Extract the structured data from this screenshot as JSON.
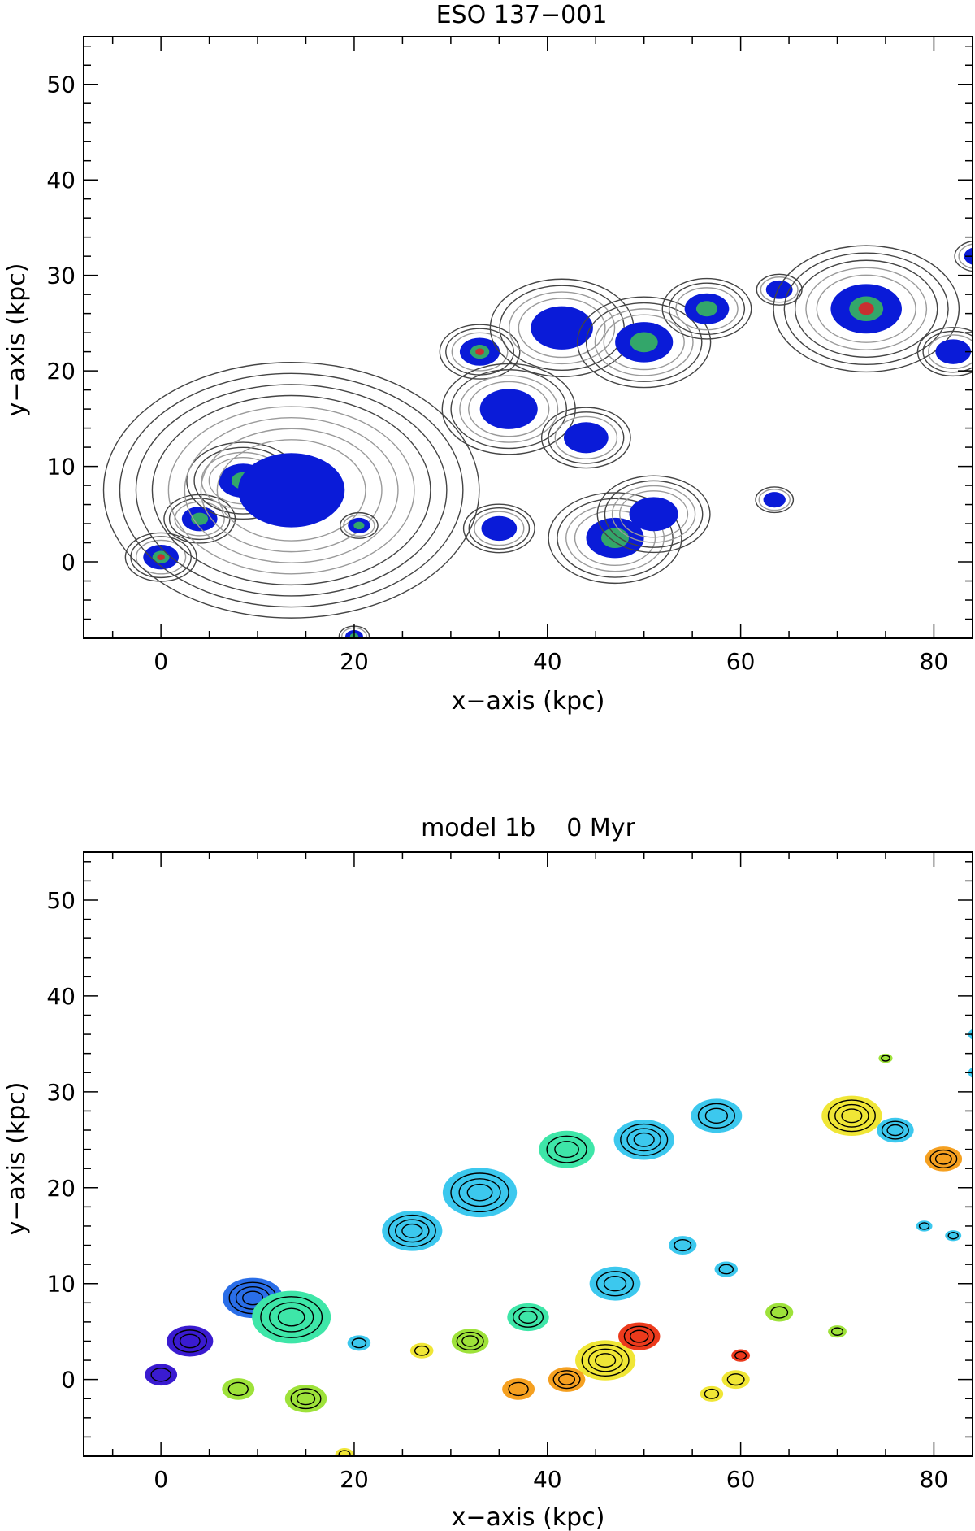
{
  "chart_data": [
    {
      "type": "heatmap",
      "title": "ESO 137−001",
      "xlabel": "x−axis (kpc)",
      "ylabel": "y−axis (kpc)",
      "xlim": [
        -8,
        84
      ],
      "ylim": [
        -8,
        55
      ],
      "xticks": [
        0,
        20,
        40,
        60,
        80
      ],
      "yticks": [
        0,
        10,
        20,
        30,
        40,
        50
      ],
      "grid": false,
      "colormap": [
        "#000000",
        "#0a1bd8",
        "#2a5ad0",
        "#33a66a",
        "#56c24e",
        "#c83030"
      ],
      "contour_color_outer": "#444444",
      "contour_color_inner": "#9a9a9a",
      "blobs": [
        {
          "x": 0.0,
          "y": 0.5,
          "r": 1.6,
          "level": 5
        },
        {
          "x": 4.0,
          "y": 4.5,
          "r": 1.6,
          "level": 3
        },
        {
          "x": 8.5,
          "y": 8.5,
          "r": 2.2,
          "level": 3
        },
        {
          "x": 13.5,
          "y": 7.5,
          "r": 4.8,
          "level": 1
        },
        {
          "x": 20.5,
          "y": 3.8,
          "r": 1.0,
          "level": 2
        },
        {
          "x": 33.0,
          "y": 22.0,
          "r": 1.8,
          "level": 5
        },
        {
          "x": 36.0,
          "y": 16.0,
          "r": 2.6,
          "level": 1
        },
        {
          "x": 41.5,
          "y": 24.5,
          "r": 2.8,
          "level": 1
        },
        {
          "x": 50.0,
          "y": 23.0,
          "r": 2.6,
          "level": 2
        },
        {
          "x": 56.5,
          "y": 26.5,
          "r": 2.0,
          "level": 3
        },
        {
          "x": 64.0,
          "y": 28.5,
          "r": 1.2,
          "level": 1
        },
        {
          "x": 73.0,
          "y": 26.5,
          "r": 3.2,
          "level": 5
        },
        {
          "x": 82.0,
          "y": 22.0,
          "r": 1.6,
          "level": 1
        },
        {
          "x": 84.5,
          "y": 32.0,
          "r": 1.2,
          "level": 1
        },
        {
          "x": 47.0,
          "y": 2.5,
          "r": 2.6,
          "level": 3
        },
        {
          "x": 51.0,
          "y": 5.0,
          "r": 2.2,
          "level": 1
        },
        {
          "x": 44.0,
          "y": 13.0,
          "r": 2.0,
          "level": 1
        },
        {
          "x": 35.0,
          "y": 3.5,
          "r": 1.6,
          "level": 1
        },
        {
          "x": 20.0,
          "y": -7.8,
          "r": 0.8,
          "level": 2
        },
        {
          "x": 63.5,
          "y": 6.5,
          "r": 1.0,
          "level": 1
        }
      ]
    },
    {
      "type": "heatmap",
      "title": "model 1b    0 Myr",
      "xlabel": "x−axis (kpc)",
      "ylabel": "y−axis (kpc)",
      "xlim": [
        -8,
        84
      ],
      "ylim": [
        -8,
        55
      ],
      "xticks": [
        0,
        20,
        40,
        60,
        80
      ],
      "yticks": [
        0,
        10,
        20,
        30,
        40,
        50
      ],
      "grid": false,
      "colormap": [
        "#3a1bd0",
        "#2a6ee8",
        "#3cc8ee",
        "#3ee6a8",
        "#9ee23a",
        "#f0e636",
        "#f5a020",
        "#ec3a1c"
      ],
      "contour_color": "#000000",
      "blobs": [
        {
          "x": 0.0,
          "y": 0.5,
          "r": 1.4,
          "level": 0
        },
        {
          "x": 3.0,
          "y": 4.0,
          "r": 2.0,
          "level": 0
        },
        {
          "x": 9.5,
          "y": 8.5,
          "r": 2.6,
          "level": 1
        },
        {
          "x": 13.5,
          "y": 6.5,
          "r": 3.4,
          "level": 3
        },
        {
          "x": 26.0,
          "y": 15.5,
          "r": 2.6,
          "level": 2
        },
        {
          "x": 33.0,
          "y": 19.5,
          "r": 3.2,
          "level": 2
        },
        {
          "x": 42.0,
          "y": 24.0,
          "r": 2.4,
          "level": 3
        },
        {
          "x": 50.0,
          "y": 25.0,
          "r": 2.6,
          "level": 2
        },
        {
          "x": 57.5,
          "y": 27.5,
          "r": 2.2,
          "level": 2
        },
        {
          "x": 71.5,
          "y": 27.5,
          "r": 2.6,
          "level": 5
        },
        {
          "x": 76.0,
          "y": 26.0,
          "r": 1.6,
          "level": 2
        },
        {
          "x": 81.0,
          "y": 23.0,
          "r": 1.6,
          "level": 6
        },
        {
          "x": 84.5,
          "y": 36.0,
          "r": 0.8,
          "level": 2
        },
        {
          "x": 84.5,
          "y": 32.0,
          "r": 0.8,
          "level": 2
        },
        {
          "x": 46.0,
          "y": 2.0,
          "r": 2.6,
          "level": 5
        },
        {
          "x": 49.5,
          "y": 4.5,
          "r": 1.8,
          "level": 7
        },
        {
          "x": 42.0,
          "y": 0.0,
          "r": 1.6,
          "level": 6
        },
        {
          "x": 37.0,
          "y": -1.0,
          "r": 1.4,
          "level": 6
        },
        {
          "x": 32.0,
          "y": 4.0,
          "r": 1.6,
          "level": 4
        },
        {
          "x": 27.0,
          "y": 3.0,
          "r": 1.0,
          "level": 5
        },
        {
          "x": 38.0,
          "y": 6.5,
          "r": 1.8,
          "level": 3
        },
        {
          "x": 47.0,
          "y": 10.0,
          "r": 2.2,
          "level": 2
        },
        {
          "x": 54.0,
          "y": 14.0,
          "r": 1.2,
          "level": 2
        },
        {
          "x": 58.5,
          "y": 11.5,
          "r": 1.0,
          "level": 2
        },
        {
          "x": 64.0,
          "y": 7.0,
          "r": 1.2,
          "level": 4
        },
        {
          "x": 59.5,
          "y": 0.0,
          "r": 1.2,
          "level": 5
        },
        {
          "x": 57.0,
          "y": -1.5,
          "r": 1.0,
          "level": 5
        },
        {
          "x": 20.5,
          "y": 3.8,
          "r": 1.0,
          "level": 2
        },
        {
          "x": 8.0,
          "y": -1.0,
          "r": 1.4,
          "level": 4
        },
        {
          "x": 15.0,
          "y": -2.0,
          "r": 1.8,
          "level": 4
        },
        {
          "x": 19.0,
          "y": -7.8,
          "r": 0.8,
          "level": 5
        },
        {
          "x": 79.0,
          "y": 16.0,
          "r": 0.7,
          "level": 2
        },
        {
          "x": 82.0,
          "y": 15.0,
          "r": 0.7,
          "level": 2
        },
        {
          "x": 70.0,
          "y": 5.0,
          "r": 0.8,
          "level": 4
        },
        {
          "x": 75.0,
          "y": 33.5,
          "r": 0.6,
          "level": 4
        },
        {
          "x": 60.0,
          "y": 2.5,
          "r": 0.8,
          "level": 7
        }
      ]
    }
  ]
}
